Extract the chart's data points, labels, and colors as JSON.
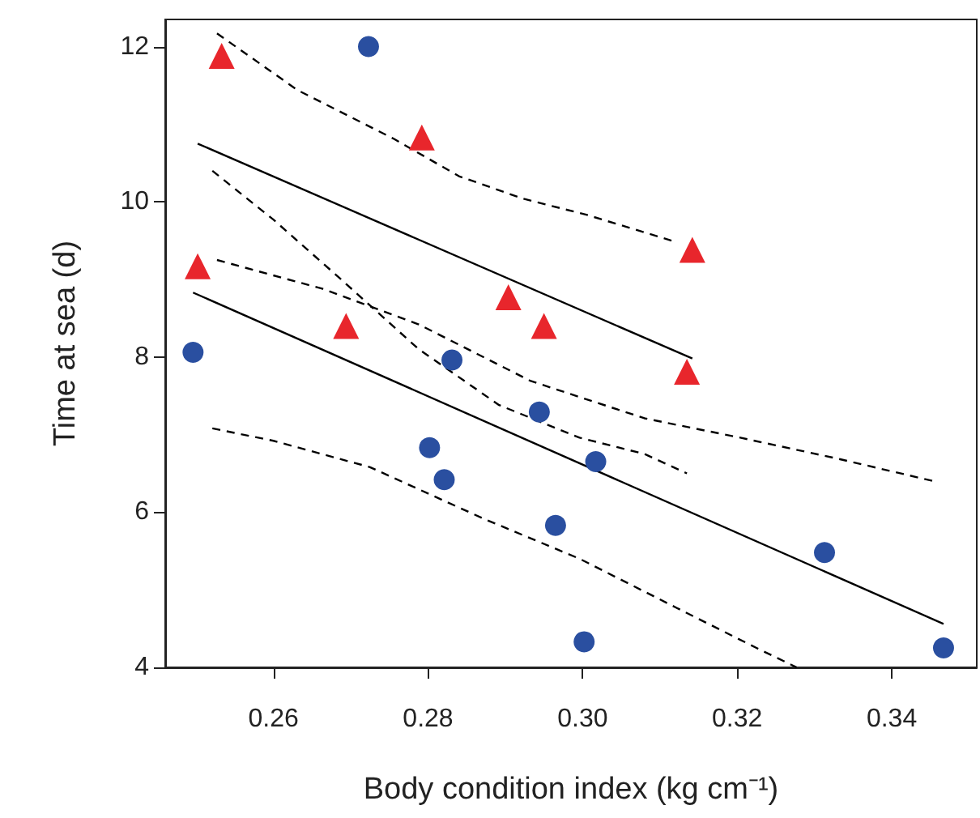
{
  "chart_data": {
    "type": "scatter",
    "xlabel": "Body condition index (kg cm⁻¹)",
    "ylabel": "Time at sea (d)",
    "xlim": [
      0.246,
      0.351
    ],
    "xticks": [
      0.26,
      0.28,
      {
        "value": 0.3,
        "label": "0.30"
      },
      0.32,
      0.34
    ],
    "ylim": [
      4,
      12.35
    ],
    "yticks": [
      4,
      6,
      8,
      10,
      12
    ],
    "grid": false,
    "series": [
      {
        "type": "scatter",
        "marker": "circle",
        "color": "#2a4fa0",
        "x": [
          0.2496,
          0.2723,
          0.2831,
          0.2802,
          0.2821,
          0.2944,
          0.3017,
          0.2965,
          0.3002,
          0.3313,
          0.3467
        ],
        "values": [
          8.06,
          12.0,
          7.96,
          6.83,
          6.42,
          7.29,
          6.65,
          5.83,
          4.33,
          5.48,
          4.25
        ]
      },
      {
        "type": "scatter",
        "marker": "triangle",
        "color": "#e8262c",
        "x": [
          0.2533,
          0.2502,
          0.2792,
          0.2694,
          0.2904,
          0.295,
          0.3142,
          0.3135
        ],
        "values": [
          11.88,
          9.17,
          10.83,
          8.4,
          8.77,
          8.4,
          9.38,
          7.81
        ]
      },
      {
        "type": "line",
        "line_style": "solid",
        "color": "#000000",
        "x": [
          0.2502,
          0.3142
        ],
        "values": [
          10.75,
          7.98
        ]
      },
      {
        "type": "line",
        "line_style": "dashed",
        "color": "#000000",
        "x": [
          0.2527,
          0.2631,
          0.2756,
          0.284,
          0.2923,
          0.3006,
          0.3115
        ],
        "values": [
          12.17,
          11.44,
          10.81,
          10.33,
          10.04,
          9.83,
          9.5
        ]
      },
      {
        "type": "line",
        "line_style": "dashed",
        "color": "#000000",
        "x": [
          0.2521,
          0.26,
          0.2683,
          0.2788,
          0.2892,
          0.2996,
          0.308,
          0.3135
        ],
        "values": [
          10.4,
          9.77,
          9.04,
          8.1,
          7.38,
          6.96,
          6.75,
          6.5
        ]
      },
      {
        "type": "line",
        "line_style": "solid",
        "color": "#000000",
        "x": [
          0.2496,
          0.3467
        ],
        "values": [
          8.83,
          4.56
        ]
      },
      {
        "type": "line",
        "line_style": "dashed",
        "color": "#000000",
        "x": [
          0.2527,
          0.2663,
          0.2788,
          0.2933,
          0.308,
          0.3204,
          0.333,
          0.3454
        ],
        "values": [
          9.25,
          8.88,
          8.42,
          7.69,
          7.21,
          6.96,
          6.69,
          6.4
        ]
      },
      {
        "type": "line",
        "line_style": "dashed",
        "color": "#000000",
        "x": [
          0.2521,
          0.26,
          0.2725,
          0.2871,
          0.2996,
          0.3121,
          0.3225,
          0.3277
        ],
        "values": [
          7.08,
          6.92,
          6.58,
          5.92,
          5.4,
          4.77,
          4.25,
          4.0
        ]
      }
    ]
  }
}
